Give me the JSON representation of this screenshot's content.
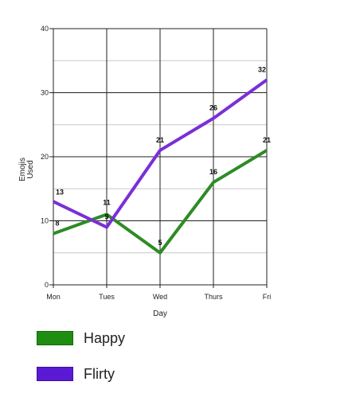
{
  "chart_data": {
    "type": "line",
    "categories": [
      "Mon",
      "Tues",
      "Wed",
      "Thurs",
      "Fri"
    ],
    "series": [
      {
        "name": "Happy",
        "values": [
          8,
          11,
          5,
          16,
          21
        ],
        "color": "#2e8b25"
      },
      {
        "name": "Flirty",
        "values": [
          13,
          9,
          21,
          26,
          32
        ],
        "color": "#7a2fd6"
      }
    ],
    "data_labels": {
      "Happy": [
        "8",
        "11",
        "5",
        "16",
        "21"
      ],
      "Flirty": [
        "13",
        "9",
        "21",
        "26",
        "32"
      ]
    },
    "xlabel": "Day",
    "ylabel_lines": [
      "Emojis",
      "Used"
    ],
    "ylim": [
      0,
      40
    ],
    "yticks": [
      0,
      10,
      20,
      30,
      40
    ],
    "grid": true,
    "legend_position": "bottom-left"
  },
  "legend": [
    {
      "label": "Happy",
      "color": "#1f8c12"
    },
    {
      "label": "Flirty",
      "color": "#5a1ad4"
    }
  ]
}
